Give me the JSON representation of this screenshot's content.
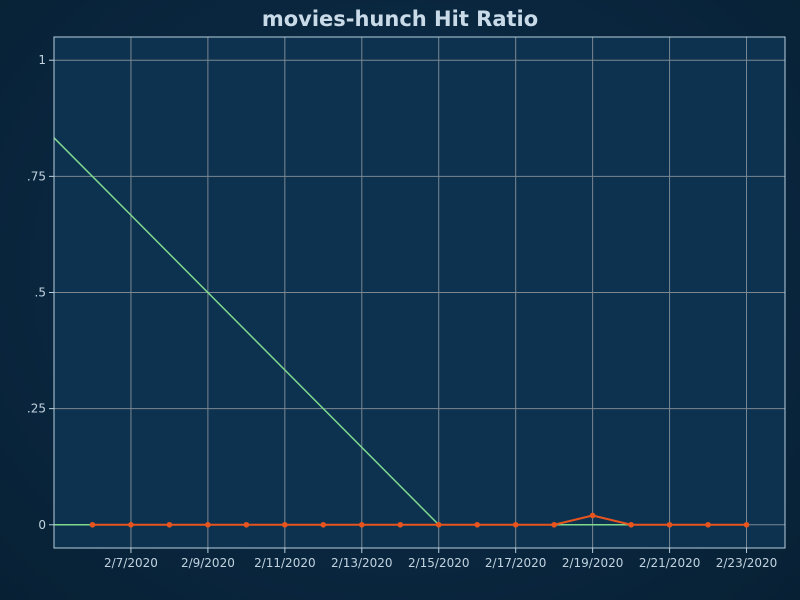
{
  "chart_data": {
    "type": "line",
    "title": "movies-hunch Hit Ratio",
    "xlabel": "",
    "ylabel": "",
    "grid": true,
    "ylim": [
      -0.05,
      1.05
    ],
    "xlim": [
      "2020-02-05",
      "2020-02-24"
    ],
    "x_ticks": [
      {
        "date": "2020-02-07",
        "label": "2/7/2020"
      },
      {
        "date": "2020-02-09",
        "label": "2/9/2020"
      },
      {
        "date": "2020-02-11",
        "label": "2/11/2020"
      },
      {
        "date": "2020-02-13",
        "label": "2/13/2020"
      },
      {
        "date": "2020-02-15",
        "label": "2/15/2020"
      },
      {
        "date": "2020-02-17",
        "label": "2/17/2020"
      },
      {
        "date": "2020-02-19",
        "label": "2/19/2020"
      },
      {
        "date": "2020-02-21",
        "label": "2/21/2020"
      },
      {
        "date": "2020-02-23",
        "label": "2/23/2020"
      }
    ],
    "y_ticks": [
      {
        "value": 0,
        "label": "0"
      },
      {
        "value": 0.25,
        "label": ".25"
      },
      {
        "value": 0.5,
        "label": ".5"
      },
      {
        "value": 0.75,
        "label": ".75"
      },
      {
        "value": 1,
        "label": "1"
      }
    ],
    "series": [
      {
        "color": "#7fd98e",
        "markers": false,
        "points": [
          {
            "x": "2020-02-05",
            "y": 0
          },
          {
            "x": "2020-02-06",
            "y": 0
          },
          {
            "x": "2020-02-15",
            "y": 0
          },
          {
            "x": "2020-02-16",
            "y": 0
          },
          {
            "x": "2020-02-17",
            "y": 0
          },
          {
            "x": "2020-02-18",
            "y": 0
          },
          {
            "x": "2020-02-19",
            "y": 0
          },
          {
            "x": "2020-02-20",
            "y": 0
          }
        ]
      },
      {
        "color": "#7fd98e",
        "markers": false,
        "points": [
          {
            "x": "2020-02-05",
            "y": 0.833
          },
          {
            "x": "2020-02-15",
            "y": 0
          }
        ]
      },
      {
        "color": "#e8541e",
        "markers": true,
        "points": [
          {
            "x": "2020-02-06",
            "y": 0
          },
          {
            "x": "2020-02-07",
            "y": 0
          },
          {
            "x": "2020-02-08",
            "y": 0
          },
          {
            "x": "2020-02-09",
            "y": 0
          },
          {
            "x": "2020-02-10",
            "y": 0
          },
          {
            "x": "2020-02-11",
            "y": 0
          },
          {
            "x": "2020-02-12",
            "y": 0
          },
          {
            "x": "2020-02-13",
            "y": 0
          },
          {
            "x": "2020-02-14",
            "y": 0
          },
          {
            "x": "2020-02-15",
            "y": 0
          },
          {
            "x": "2020-02-16",
            "y": 0
          },
          {
            "x": "2020-02-17",
            "y": 0
          },
          {
            "x": "2020-02-18",
            "y": 0
          },
          {
            "x": "2020-02-19",
            "y": 0.02
          },
          {
            "x": "2020-02-20",
            "y": 0
          },
          {
            "x": "2020-02-21",
            "y": 0
          },
          {
            "x": "2020-02-22",
            "y": 0
          },
          {
            "x": "2020-02-23",
            "y": 0
          }
        ]
      }
    ],
    "colors": {
      "plot_background": "#0c3250",
      "plot_border": "#b8cfdd",
      "grid": "#7c8790"
    }
  }
}
